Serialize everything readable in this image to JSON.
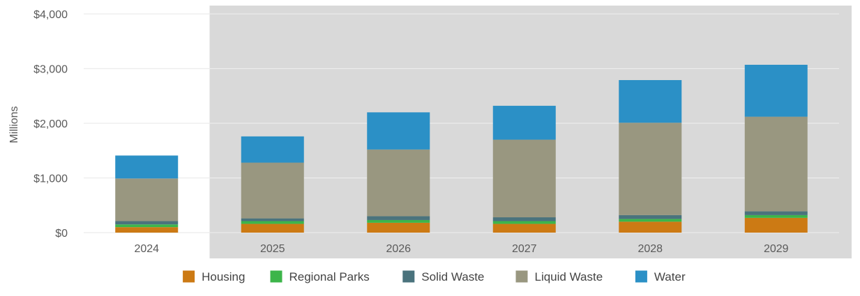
{
  "chart_data": {
    "type": "bar",
    "stacked": true,
    "categories": [
      "2024",
      "2025",
      "2026",
      "2027",
      "2028",
      "2029"
    ],
    "series": [
      {
        "name": "Housing",
        "color": "#cc7a14",
        "values": [
          100,
          160,
          180,
          160,
          200,
          270
        ]
      },
      {
        "name": "Regional Parks",
        "color": "#3cb54a",
        "values": [
          50,
          50,
          50,
          50,
          50,
          50
        ]
      },
      {
        "name": "Solid Waste",
        "color": "#4a737d",
        "values": [
          60,
          50,
          70,
          70,
          70,
          70
        ]
      },
      {
        "name": "Liquid Waste",
        "color": "#999780",
        "values": [
          780,
          1020,
          1220,
          1420,
          1690,
          1730
        ]
      },
      {
        "name": "Water",
        "color": "#2b90c6",
        "values": [
          420,
          480,
          680,
          620,
          780,
          950
        ]
      }
    ],
    "ylabel": "Millions",
    "ylim": [
      0,
      4000
    ],
    "yticks": [
      "$0",
      "$1,000",
      "$2,000",
      "$3,000",
      "$4,000"
    ],
    "ytick_values": [
      0,
      1000,
      2000,
      3000,
      4000
    ],
    "grid": true,
    "shaded_region_categories": [
      "2025",
      "2026",
      "2027",
      "2028",
      "2029"
    ],
    "shaded_region_color": "#d9d9d9",
    "legend_position": "bottom"
  }
}
